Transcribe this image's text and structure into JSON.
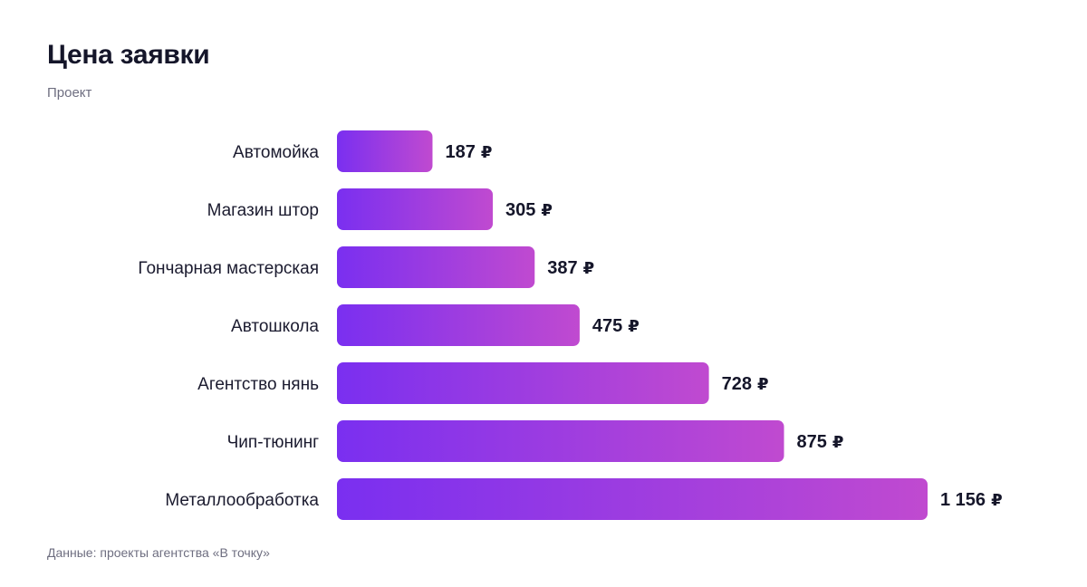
{
  "chart_data": {
    "type": "bar",
    "orientation": "horizontal",
    "title": "Цена заявки",
    "subtitle": "Проект",
    "source": "Данные: проекты агентства «В точку»",
    "categories": [
      "Автомойка",
      "Магазин штор",
      "Гончарная мастерская",
      "Автошкола",
      "Агентство нянь",
      "Чип-тюнинг",
      "Металлообработка"
    ],
    "values": [
      187,
      305,
      387,
      475,
      728,
      875,
      1156
    ],
    "value_labels": [
      "187",
      "305",
      "387",
      "475",
      "728",
      "875",
      "1 156"
    ],
    "unit": "₽",
    "xlim": [
      0,
      1156
    ],
    "grid": false,
    "legend": "none",
    "bar_gradient": [
      "#7a2ff0",
      "#c04ad0"
    ]
  }
}
